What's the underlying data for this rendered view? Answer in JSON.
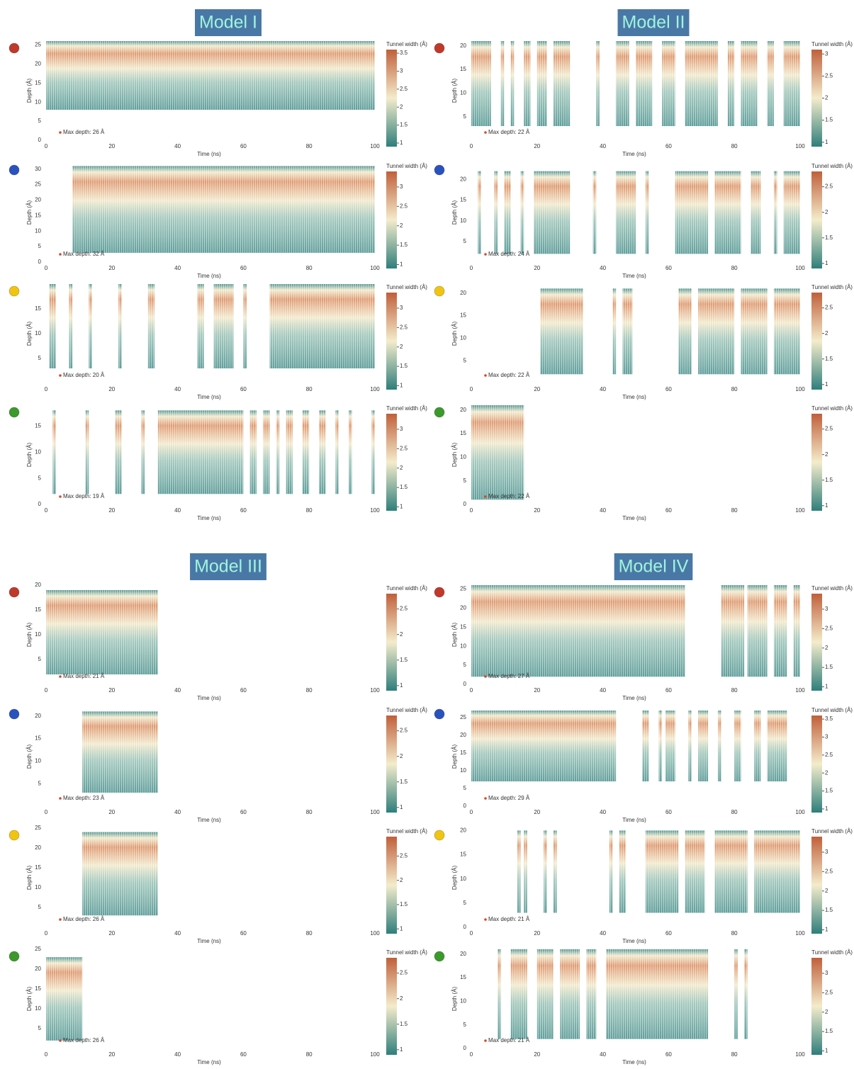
{
  "axis_labels": {
    "y": "Depth (Å)",
    "x": "Time (ns)",
    "colorbar": "Tunnel width (Å)"
  },
  "xlim": [
    0,
    100
  ],
  "xticks": [
    0,
    20,
    40,
    60,
    80,
    100
  ],
  "models": [
    {
      "title": "Model I",
      "panels": [
        {
          "marker_color": "#c0392b",
          "ylim": [
            0,
            26
          ],
          "yticks": [
            0,
            5,
            10,
            15,
            20,
            25
          ],
          "colorbar_lim": [
            0.9,
            3.6
          ],
          "colorbar_ticks": [
            1,
            1.5,
            2,
            2.5,
            3,
            3.5
          ],
          "max_depth_label": "Max depth: 26 Å",
          "intervals": [
            [
              0,
              100
            ]
          ],
          "depth_range": [
            8,
            26
          ]
        },
        {
          "marker_color": "#2a52be",
          "ylim": [
            0,
            32
          ],
          "yticks": [
            0,
            5,
            10,
            15,
            20,
            25,
            30
          ],
          "colorbar_lim": [
            0.9,
            3.4
          ],
          "colorbar_ticks": [
            1,
            1.5,
            2,
            2.5,
            3
          ],
          "max_depth_label": "Max depth: 32 Å",
          "intervals": [
            [
              8,
              100
            ]
          ],
          "depth_range": [
            3,
            31
          ]
        },
        {
          "marker_color": "#f1c40f",
          "ylim": [
            0,
            20
          ],
          "yticks": [
            5,
            10,
            15
          ],
          "colorbar_lim": [
            0.9,
            3.4
          ],
          "colorbar_ticks": [
            1,
            1.5,
            2,
            2.5,
            3
          ],
          "max_depth_label": "Max depth: 20 Å",
          "intervals": [
            [
              1,
              3
            ],
            [
              7,
              8
            ],
            [
              13,
              14
            ],
            [
              22,
              23
            ],
            [
              31,
              33
            ],
            [
              46,
              48
            ],
            [
              51,
              57
            ],
            [
              60,
              61
            ],
            [
              68,
              100
            ]
          ],
          "depth_range": [
            3,
            20
          ]
        },
        {
          "marker_color": "#3a9a2a",
          "ylim": [
            0,
            19
          ],
          "yticks": [
            0,
            5,
            10,
            15
          ],
          "colorbar_lim": [
            0.9,
            3.4
          ],
          "colorbar_ticks": [
            1,
            1.5,
            2,
            2.5,
            3
          ],
          "max_depth_label": "Max depth: 19 Å",
          "intervals": [
            [
              2,
              3
            ],
            [
              12,
              13
            ],
            [
              21,
              23
            ],
            [
              29,
              30
            ],
            [
              34,
              60
            ],
            [
              62,
              64
            ],
            [
              66,
              68
            ],
            [
              70,
              71
            ],
            [
              73,
              75
            ],
            [
              78,
              80
            ],
            [
              83,
              85
            ],
            [
              88,
              89
            ],
            [
              92,
              93
            ],
            [
              99,
              100
            ]
          ],
          "depth_range": [
            2,
            18
          ]
        }
      ]
    },
    {
      "title": "Model II",
      "panels": [
        {
          "marker_color": "#c0392b",
          "ylim": [
            0,
            21
          ],
          "yticks": [
            5,
            10,
            15,
            20
          ],
          "colorbar_lim": [
            0.9,
            3.1
          ],
          "colorbar_ticks": [
            1,
            1.5,
            2,
            2.5,
            3
          ],
          "max_depth_label": "Max depth: 22 Å",
          "intervals": [
            [
              0,
              6
            ],
            [
              9,
              10
            ],
            [
              12,
              13
            ],
            [
              16,
              18
            ],
            [
              20,
              23
            ],
            [
              25,
              30
            ],
            [
              38,
              39
            ],
            [
              44,
              48
            ],
            [
              50,
              55
            ],
            [
              58,
              62
            ],
            [
              65,
              75
            ],
            [
              78,
              80
            ],
            [
              82,
              87
            ],
            [
              90,
              92
            ],
            [
              95,
              100
            ]
          ],
          "depth_range": [
            3,
            21
          ]
        },
        {
          "marker_color": "#2a52be",
          "ylim": [
            0,
            24
          ],
          "yticks": [
            5,
            10,
            15,
            20
          ],
          "colorbar_lim": [
            0.9,
            2.8
          ],
          "colorbar_ticks": [
            1,
            1.5,
            2,
            2.5
          ],
          "max_depth_label": "Max depth: 24 Å",
          "intervals": [
            [
              2,
              3
            ],
            [
              7,
              8
            ],
            [
              10,
              12
            ],
            [
              15,
              16
            ],
            [
              19,
              30
            ],
            [
              37,
              38
            ],
            [
              44,
              50
            ],
            [
              53,
              54
            ],
            [
              62,
              72
            ],
            [
              74,
              82
            ],
            [
              85,
              88
            ],
            [
              92,
              93
            ],
            [
              95,
              100
            ]
          ],
          "depth_range": [
            2,
            22
          ]
        },
        {
          "marker_color": "#f1c40f",
          "ylim": [
            0,
            22
          ],
          "yticks": [
            5,
            10,
            15,
            20
          ],
          "colorbar_lim": [
            0.9,
            2.8
          ],
          "colorbar_ticks": [
            1,
            1.5,
            2,
            2.5
          ],
          "max_depth_label": "Max depth: 22 Å",
          "intervals": [
            [
              21,
              34
            ],
            [
              43,
              44
            ],
            [
              46,
              49
            ],
            [
              63,
              67
            ],
            [
              69,
              80
            ],
            [
              82,
              90
            ],
            [
              92,
              100
            ]
          ],
          "depth_range": [
            2,
            21
          ]
        },
        {
          "marker_color": "#3a9a2a",
          "ylim": [
            0,
            21
          ],
          "yticks": [
            0,
            5,
            10,
            15,
            20
          ],
          "colorbar_lim": [
            0.9,
            2.8
          ],
          "colorbar_ticks": [
            1,
            1.5,
            2,
            2.5
          ],
          "max_depth_label": "Max depth: 22 Å",
          "intervals": [
            [
              0,
              16
            ]
          ],
          "depth_range": [
            1,
            21
          ]
        }
      ]
    },
    {
      "title": "Model III",
      "panels": [
        {
          "marker_color": "#c0392b",
          "ylim": [
            0,
            20
          ],
          "yticks": [
            5,
            10,
            15,
            20
          ],
          "colorbar_lim": [
            0.9,
            2.8
          ],
          "colorbar_ticks": [
            1,
            1.5,
            2,
            2.5
          ],
          "max_depth_label": "Max depth: 21 Å",
          "intervals": [
            [
              0,
              34
            ]
          ],
          "depth_range": [
            2,
            19
          ]
        },
        {
          "marker_color": "#2a52be",
          "ylim": [
            0,
            22
          ],
          "yticks": [
            5,
            10,
            15,
            20
          ],
          "colorbar_lim": [
            0.9,
            2.8
          ],
          "colorbar_ticks": [
            1,
            1.5,
            2,
            2.5
          ],
          "max_depth_label": "Max depth: 23 Å",
          "intervals": [
            [
              11,
              34
            ]
          ],
          "depth_range": [
            3,
            21
          ]
        },
        {
          "marker_color": "#f1c40f",
          "ylim": [
            0,
            25
          ],
          "yticks": [
            5,
            10,
            15,
            20,
            25
          ],
          "colorbar_lim": [
            0.9,
            2.9
          ],
          "colorbar_ticks": [
            1,
            1.5,
            2,
            2.5
          ],
          "max_depth_label": "Max depth: 26 Å",
          "intervals": [
            [
              11,
              34
            ]
          ],
          "depth_range": [
            3,
            24
          ]
        },
        {
          "marker_color": "#3a9a2a",
          "ylim": [
            0,
            25
          ],
          "yticks": [
            5,
            10,
            15,
            20,
            25
          ],
          "colorbar_lim": [
            0.9,
            2.8
          ],
          "colorbar_ticks": [
            1,
            1.5,
            2,
            2.5
          ],
          "max_depth_label": "Max depth: 26 Å",
          "intervals": [
            [
              0,
              11
            ]
          ],
          "depth_range": [
            2,
            23
          ]
        }
      ]
    },
    {
      "title": "Model IV",
      "panels": [
        {
          "marker_color": "#c0392b",
          "ylim": [
            0,
            26
          ],
          "yticks": [
            0,
            5,
            10,
            15,
            20,
            25
          ],
          "colorbar_lim": [
            0.9,
            3.4
          ],
          "colorbar_ticks": [
            1,
            1.5,
            2,
            2.5,
            3
          ],
          "max_depth_label": "Max depth: 27 Å",
          "intervals": [
            [
              0,
              65
            ],
            [
              76,
              83
            ],
            [
              84,
              90
            ],
            [
              92,
              96
            ],
            [
              98,
              100
            ]
          ],
          "depth_range": [
            2,
            26
          ]
        },
        {
          "marker_color": "#2a52be",
          "ylim": [
            0,
            28
          ],
          "yticks": [
            0,
            5,
            10,
            15,
            20,
            25
          ],
          "colorbar_lim": [
            0.9,
            3.6
          ],
          "colorbar_ticks": [
            1,
            1.5,
            2,
            2.5,
            3,
            3.5
          ],
          "max_depth_label": "Max depth: 29 Å",
          "intervals": [
            [
              0,
              44
            ],
            [
              52,
              54
            ],
            [
              57,
              58
            ],
            [
              59,
              62
            ],
            [
              66,
              67
            ],
            [
              69,
              72
            ],
            [
              75,
              76
            ],
            [
              80,
              82
            ],
            [
              86,
              88
            ],
            [
              90,
              96
            ]
          ],
          "depth_range": [
            7,
            27
          ]
        },
        {
          "marker_color": "#f1c40f",
          "ylim": [
            0,
            20.5
          ],
          "yticks": [
            0,
            5,
            10,
            15,
            20
          ],
          "colorbar_lim": [
            0.9,
            3.4
          ],
          "colorbar_ticks": [
            1,
            1.5,
            2,
            2.5,
            3
          ],
          "max_depth_label": "Max depth: 21 Å",
          "intervals": [
            [
              14,
              15
            ],
            [
              16,
              17
            ],
            [
              22,
              23
            ],
            [
              25,
              26
            ],
            [
              42,
              43
            ],
            [
              45,
              47
            ],
            [
              53,
              63
            ],
            [
              65,
              71
            ],
            [
              74,
              84
            ],
            [
              86,
              100
            ]
          ],
          "depth_range": [
            3,
            20
          ]
        },
        {
          "marker_color": "#3a9a2a",
          "ylim": [
            0,
            21
          ],
          "yticks": [
            0,
            5,
            10,
            15,
            20
          ],
          "colorbar_lim": [
            0.9,
            3.4
          ],
          "colorbar_ticks": [
            1,
            1.5,
            2,
            2.5,
            3
          ],
          "max_depth_label": "Max depth: 21 Å",
          "intervals": [
            [
              8,
              9
            ],
            [
              12,
              17
            ],
            [
              20,
              25
            ],
            [
              27,
              33
            ],
            [
              35,
              38
            ],
            [
              41,
              72
            ],
            [
              80,
              81
            ],
            [
              83,
              84
            ]
          ],
          "depth_range": [
            2,
            21
          ]
        }
      ]
    }
  ]
}
